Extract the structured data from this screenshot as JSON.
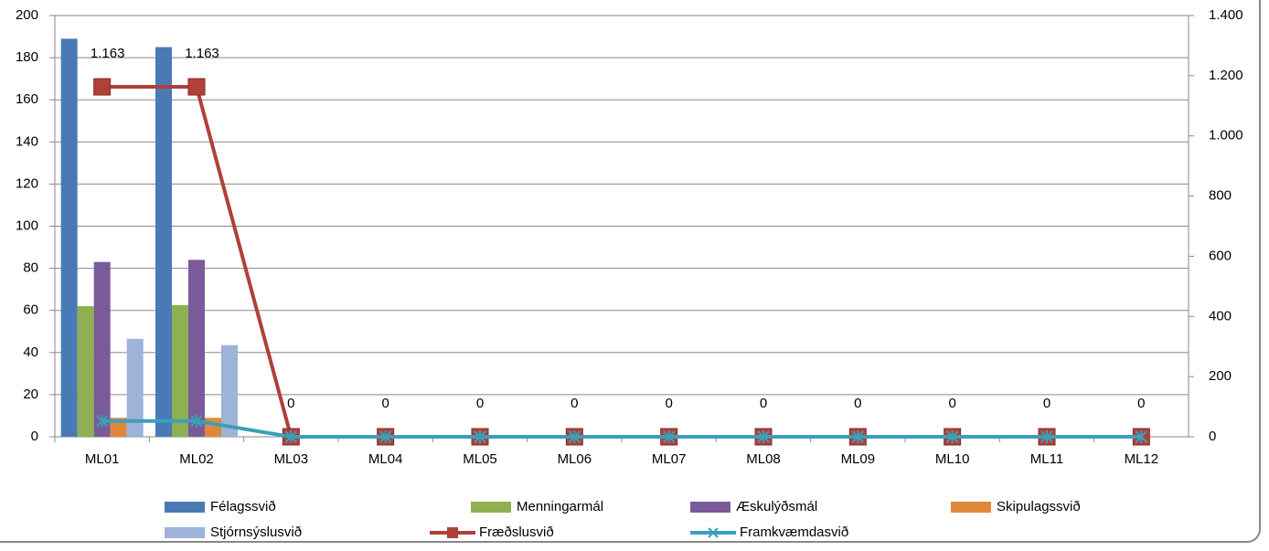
{
  "chart_data": {
    "type": "bar",
    "categories": [
      "ML01",
      "ML02",
      "ML03",
      "ML04",
      "ML05",
      "ML06",
      "ML07",
      "ML08",
      "ML09",
      "ML10",
      "ML11",
      "ML12"
    ],
    "series": [
      {
        "name": "Félagssvið",
        "color": "#4a7ab5",
        "values": [
          189,
          185,
          0,
          0,
          0,
          0,
          0,
          0,
          0,
          0,
          0,
          0
        ]
      },
      {
        "name": "Menningarmál",
        "color": "#8eb050",
        "values": [
          62,
          62.5,
          0,
          0,
          0,
          0,
          0,
          0,
          0,
          0,
          0,
          0
        ]
      },
      {
        "name": "Æskulýðsmál",
        "color": "#7a5a9a",
        "values": [
          83,
          84,
          0,
          0,
          0,
          0,
          0,
          0,
          0,
          0,
          0,
          0
        ]
      },
      {
        "name": "Skipulagssvið",
        "color": "#e0883a",
        "values": [
          9,
          9,
          0,
          0,
          0,
          0,
          0,
          0,
          0,
          0,
          0,
          0
        ]
      },
      {
        "name": "Stjórnsýslusvið",
        "color": "#9db3d8",
        "values": [
          46.5,
          43.5,
          0,
          0,
          0,
          0,
          0,
          0,
          0,
          0,
          0,
          0
        ]
      },
      {
        "name": "Fræðslusvið",
        "color": "#b0403a",
        "type": "line",
        "marker": "square",
        "axis": "y2",
        "values": [
          1163,
          1163,
          0,
          0,
          0,
          0,
          0,
          0,
          0,
          0,
          0,
          0
        ],
        "value_labels": [
          "1.163",
          "1.163",
          "0",
          "0",
          "0",
          "0",
          "0",
          "0",
          "0",
          "0",
          "0",
          "0"
        ]
      },
      {
        "name": "Framkvæmdasvið",
        "color": "#3aa0b8",
        "type": "line",
        "marker": "asterisk",
        "values": [
          7.5,
          7.5,
          0,
          0,
          0,
          0,
          0,
          0,
          0,
          0,
          0,
          0
        ]
      }
    ],
    "ylim": [
      0,
      200
    ],
    "yticks": [
      0,
      20,
      40,
      60,
      80,
      100,
      120,
      140,
      160,
      180,
      200
    ],
    "y2lim": [
      0,
      1400
    ],
    "y2ticks": [
      0,
      200,
      400,
      600,
      800,
      {
        "value": 1000,
        "label": "1.000"
      },
      {
        "value": 1200,
        "label": "1.200"
      },
      {
        "value": 1400,
        "label": "1.400"
      }
    ],
    "grid": true,
    "legend": "bottom"
  }
}
